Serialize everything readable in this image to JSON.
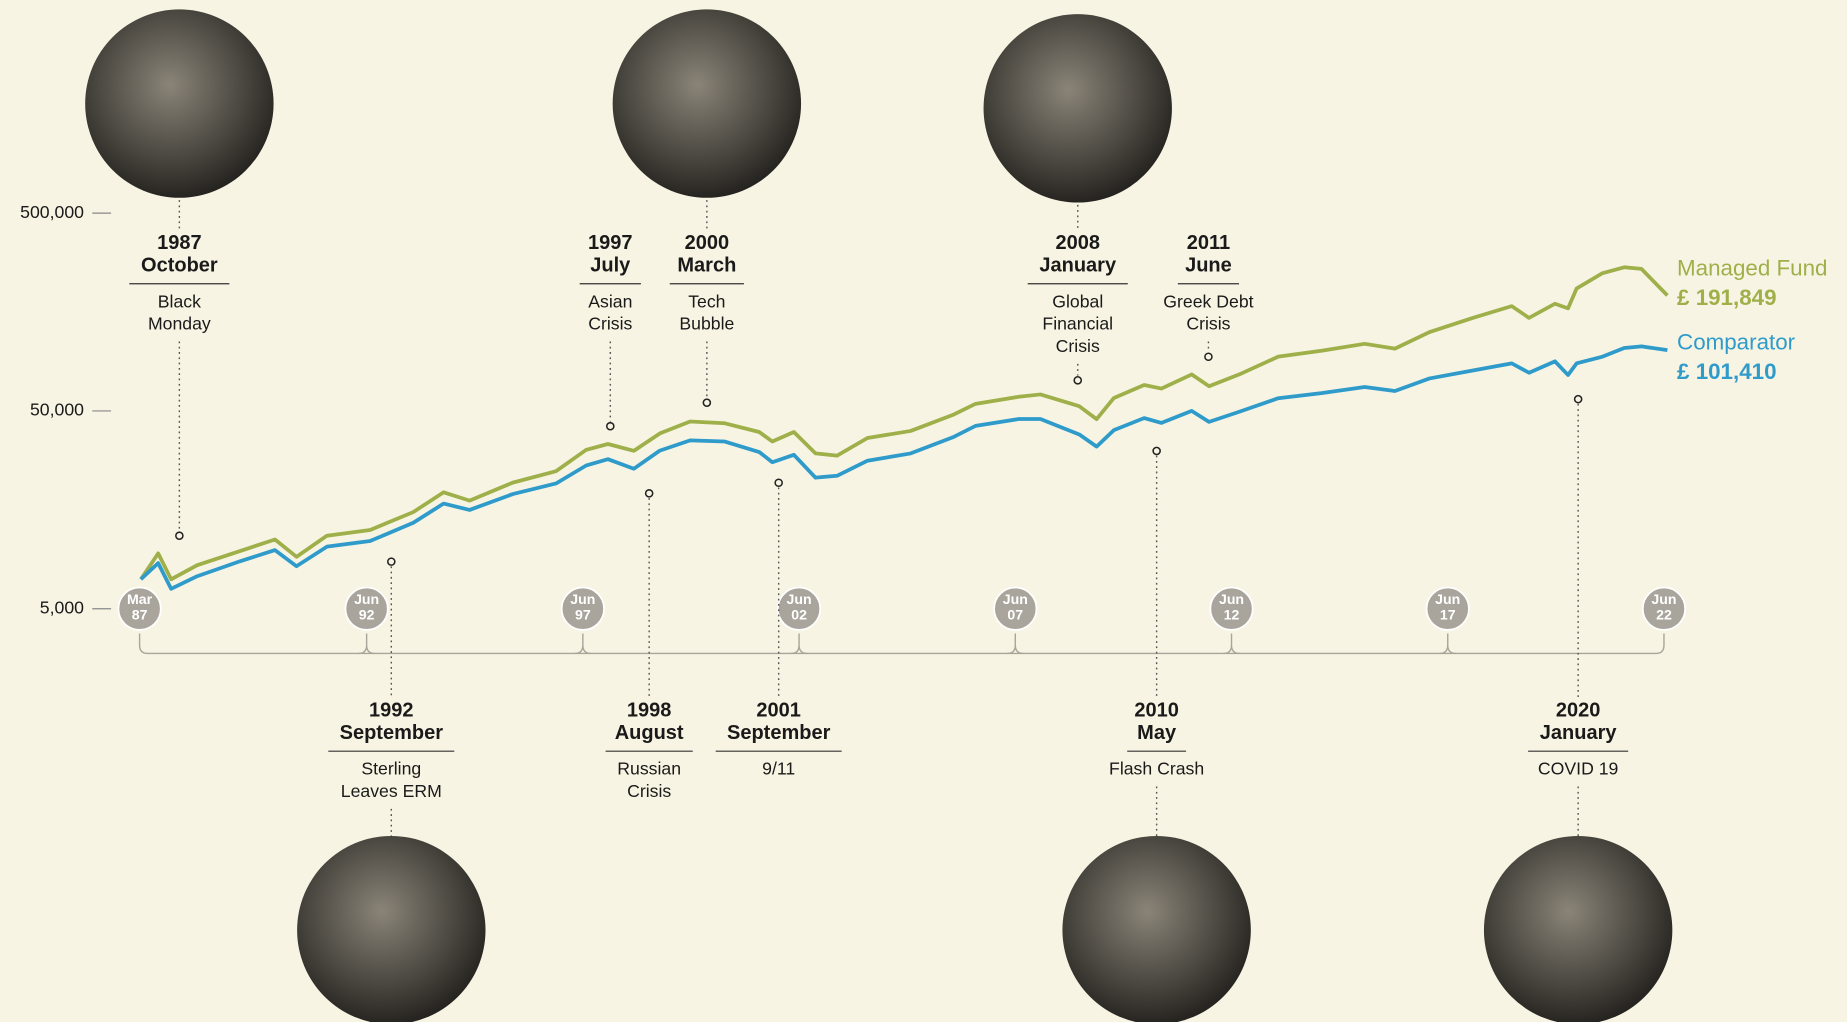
{
  "chart_data": {
    "type": "line",
    "log_scale": true,
    "x": [
      1987.2,
      1987.6,
      1987.9,
      1988.5,
      1989.5,
      1990.3,
      1990.8,
      1991.5,
      1992.5,
      1993.5,
      1994.2,
      1994.8,
      1995.8,
      1996.8,
      1997.5,
      1998.0,
      1998.6,
      1999.2,
      1999.9,
      2000.7,
      2001.5,
      2001.8,
      2002.3,
      2002.8,
      2003.3,
      2004.0,
      2005.0,
      2006.0,
      2006.5,
      2007.5,
      2008.0,
      2008.9,
      2009.3,
      2009.7,
      2010.4,
      2010.8,
      2011.5,
      2011.9,
      2012.6,
      2013.5,
      2014.5,
      2015.5,
      2016.2,
      2017.0,
      2018.0,
      2018.9,
      2019.3,
      2019.9,
      2020.2,
      2020.4,
      2021.0,
      2021.5,
      2021.9,
      2022.5
    ],
    "series": [
      {
        "name": "Managed Fund",
        "color": "#9fb04a",
        "last_value_label": "£ 191,849",
        "values": [
          7045,
          9525,
          7045,
          8300,
          9800,
          11200,
          9150,
          11700,
          12500,
          15400,
          19400,
          17600,
          21700,
          24800,
          31800,
          34000,
          31400,
          38500,
          44200,
          43300,
          39100,
          35000,
          39100,
          30500,
          29700,
          36500,
          39600,
          48000,
          54300,
          58900,
          60600,
          52800,
          45400,
          58100,
          67600,
          64900,
          76500,
          66700,
          76500,
          94000,
          100700,
          109200,
          103300,
          125300,
          147600,
          169300,
          147600,
          174100,
          164900,
          208000,
          248400,
          266000,
          261000,
          191849
        ]
      },
      {
        "name": "Comparator",
        "color": "#2f9bcb",
        "last_value_label": "£ 101,410",
        "values": [
          7045,
          8500,
          6300,
          7300,
          8700,
          9900,
          8200,
          10300,
          11000,
          13600,
          17000,
          15800,
          19000,
          21500,
          26500,
          28500,
          25500,
          31500,
          35500,
          35000,
          31000,
          27500,
          30000,
          23000,
          23500,
          28000,
          30500,
          37000,
          42000,
          45500,
          45500,
          38000,
          33000,
          40000,
          46000,
          43500,
          50000,
          44000,
          49500,
          58000,
          61500,
          66000,
          63000,
          73000,
          80000,
          87000,
          78000,
          89000,
          76000,
          87000,
          94000,
          104000,
          106000,
          101410
        ]
      }
    ],
    "xlim": [
      1986.9,
      2022.6
    ],
    "xticks": [
      {
        "value": 1987.17,
        "label": [
          "Mar",
          "87"
        ]
      },
      {
        "value": 1992.42,
        "label": [
          "Jun",
          "92"
        ]
      },
      {
        "value": 1997.42,
        "label": [
          "Jun",
          "97"
        ]
      },
      {
        "value": 2002.42,
        "label": [
          "Jun",
          "02"
        ]
      },
      {
        "value": 2007.42,
        "label": [
          "Jun",
          "07"
        ]
      },
      {
        "value": 2012.42,
        "label": [
          "Jun",
          "12"
        ]
      },
      {
        "value": 2017.42,
        "label": [
          "Jun",
          "17"
        ]
      },
      {
        "value": 2022.42,
        "label": [
          "Jun",
          "22"
        ]
      }
    ],
    "ylim": [
      5000,
      500000
    ],
    "yticks": [
      {
        "value": 5000,
        "label": "5,000"
      },
      {
        "value": 50000,
        "label": "50,000"
      },
      {
        "value": 500000,
        "label": "500,000"
      }
    ],
    "events": [
      {
        "year": "1987",
        "month": "October",
        "label": [
          "Black",
          "Monday"
        ]
      },
      {
        "year": "1992",
        "month": "September",
        "label": [
          "Sterling",
          "Leaves ERM"
        ]
      },
      {
        "year": "1997",
        "month": "July",
        "label": [
          "Asian",
          "Crisis"
        ]
      },
      {
        "year": "1998",
        "month": "August",
        "label": [
          "Russian",
          "Crisis"
        ]
      },
      {
        "year": "2000",
        "month": "March",
        "label": [
          "Tech",
          "Bubble"
        ]
      },
      {
        "year": "2001",
        "month": "September",
        "label": [
          "9/11"
        ]
      },
      {
        "year": "2008",
        "month": "January",
        "label": [
          "Global",
          "Financial",
          "Crisis"
        ]
      },
      {
        "year": "2010",
        "month": "May",
        "label": [
          "Flash Crash"
        ]
      },
      {
        "year": "2011",
        "month": "June",
        "label": [
          "Greek Debt",
          "Crisis"
        ]
      },
      {
        "year": "2020",
        "month": "January",
        "label": [
          "COVID 19"
        ]
      }
    ]
  }
}
